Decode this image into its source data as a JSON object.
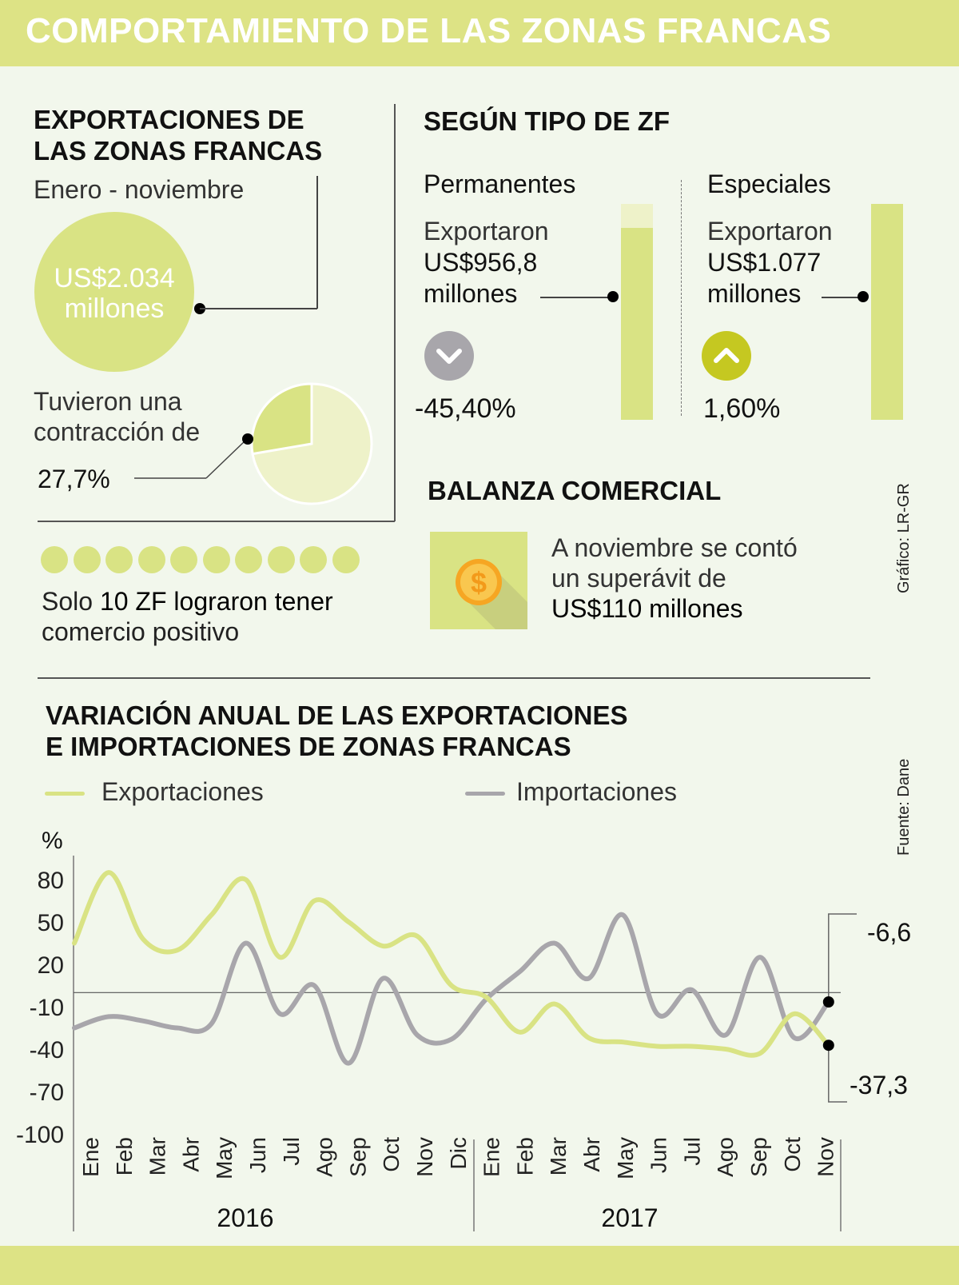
{
  "header": {
    "title": "COMPORTAMIENTO DE LAS ZONAS FRANCAS"
  },
  "colors": {
    "accent": "#d9e384",
    "accent_light": "#eef2c9",
    "grey": "#a8a6ab",
    "up": "#c5c821",
    "bg": "#f2f7ec"
  },
  "exports": {
    "title_line1": "EXPORTACIONES DE",
    "title_line2": "LAS ZONAS FRANCAS",
    "period": "Enero - noviembre",
    "amount_line1": "US$2.034",
    "amount_line2": "millones",
    "contraction_line1": "Tuvieron una",
    "contraction_line2": "contracción de",
    "contraction_value": "27,7%",
    "contraction_pct": 27.7
  },
  "positive_zf": {
    "count": 10,
    "text_pre": "Solo ",
    "text_bold": "10 ZF lograron tener",
    "text_line2": "comercio positivo"
  },
  "by_type": {
    "title": "SEGÚN TIPO DE ZF",
    "permanentes": {
      "label": "Permanentes",
      "verb": "Exportaron",
      "amount": "US$956,8",
      "unit": "millones",
      "change": "-45,40%",
      "direction": "chevron-down-icon",
      "bar_fill_pct": 89
    },
    "especiales": {
      "label": "Especiales",
      "verb": "Exportaron",
      "amount": "US$1.077",
      "unit": "millones",
      "change": "1,60%",
      "direction": "chevron-up-icon",
      "bar_fill_pct": 100
    }
  },
  "balanza": {
    "title": "BALANZA COMERCIAL",
    "line1": "A noviembre se contó",
    "line2": "un superávit de",
    "line3": "US$110 millones",
    "icon": "dollar-coin-icon"
  },
  "credits": {
    "grafico": "Gráfico: LR-GR",
    "fuente": "Fuente: Dane"
  },
  "chart_data": {
    "type": "line",
    "title_line1": "VARIACIÓN ANUAL DE LAS EXPORTACIONES",
    "title_line2": "E  IMPORTACIONES DE ZONAS FRANCAS",
    "ylabel": "%",
    "yticks": [
      "80",
      "50",
      "20",
      "-10",
      "-40",
      "-70",
      "-100"
    ],
    "ytick_values": [
      80,
      50,
      20,
      -10,
      -40,
      -70,
      -100
    ],
    "ylim": [
      -100,
      95
    ],
    "months": [
      "Ene",
      "Feb",
      "Mar",
      "Abr",
      "May",
      "Jun",
      "Jul",
      "Ago",
      "Sep",
      "Oct",
      "Nov",
      "Dic",
      "Ene",
      "Feb",
      "Mar",
      "Abr",
      "May",
      "Jun",
      "Jul",
      "Ago",
      "Sep",
      "Oct",
      "Nov"
    ],
    "years": [
      "2016",
      "2017"
    ],
    "legend_position": "top",
    "series": [
      {
        "name": "Exportaciones",
        "color": "#d9e384",
        "values": [
          35,
          85,
          38,
          30,
          55,
          80,
          25,
          65,
          50,
          33,
          40,
          5,
          -3,
          -28,
          -8,
          -32,
          -35,
          -38,
          -38,
          -40,
          -43,
          -15,
          -37.3
        ]
      },
      {
        "name": "Importaciones",
        "color": "#a8a6ab",
        "values": [
          -25,
          -17,
          -20,
          -25,
          -22,
          35,
          -15,
          5,
          -50,
          10,
          -30,
          -33,
          -5,
          15,
          35,
          10,
          55,
          -15,
          2,
          -30,
          25,
          -32,
          -6.6
        ]
      }
    ],
    "annotations": {
      "imports_last": "-6,6",
      "exports_last": "-37,3"
    }
  }
}
